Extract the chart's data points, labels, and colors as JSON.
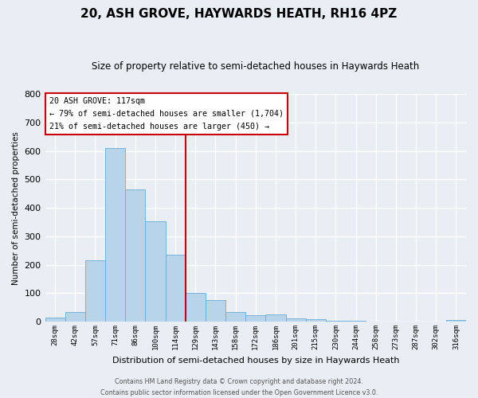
{
  "title": "20, ASH GROVE, HAYWARDS HEATH, RH16 4PZ",
  "subtitle": "Size of property relative to semi-detached houses in Haywards Heath",
  "xlabel": "Distribution of semi-detached houses by size in Haywards Heath",
  "ylabel": "Number of semi-detached properties",
  "footer_line1": "Contains HM Land Registry data © Crown copyright and database right 2024.",
  "footer_line2": "Contains public sector information licensed under the Open Government Licence v3.0.",
  "bin_labels": [
    "28sqm",
    "42sqm",
    "57sqm",
    "71sqm",
    "86sqm",
    "100sqm",
    "114sqm",
    "129sqm",
    "143sqm",
    "158sqm",
    "172sqm",
    "186sqm",
    "201sqm",
    "215sqm",
    "230sqm",
    "244sqm",
    "258sqm",
    "273sqm",
    "287sqm",
    "302sqm",
    "316sqm"
  ],
  "bar_values": [
    15,
    35,
    215,
    610,
    465,
    352,
    235,
    102,
    76,
    35,
    22,
    25,
    12,
    10,
    2,
    2,
    1,
    0,
    0,
    0,
    5
  ],
  "bar_color": "#b8d4ea",
  "bar_edge_color": "#6aaad4",
  "marker_bin_index": 6,
  "marker_color": "#cc0000",
  "annotation_title": "20 ASH GROVE: 117sqm",
  "annotation_line1": "← 79% of semi-detached houses are smaller (1,704)",
  "annotation_line2": "21% of semi-detached houses are larger (450) →",
  "annotation_box_edge": "#cc0000",
  "ylim": [
    0,
    800
  ],
  "yticks": [
    0,
    100,
    200,
    300,
    400,
    500,
    600,
    700,
    800
  ],
  "background_color": "#e8eef4",
  "grid_color": "#ffffff"
}
